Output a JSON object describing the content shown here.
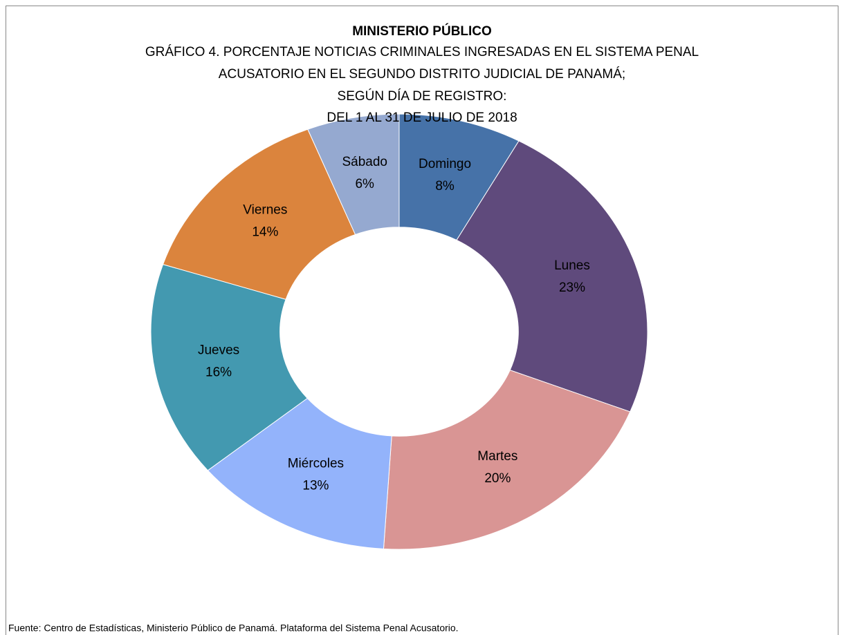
{
  "chart_data": {
    "type": "donut",
    "title": "MINISTERIO PÚBLICO",
    "subtitle": [
      "GRÁFICO 4. PORCENTAJE NOTICIAS CRIMINALES INGRESADAS EN EL SISTEMA PENAL",
      "ACUSATORIO EN EL SEGUNDO DISTRITO JUDICIAL DE PANAMÁ;",
      "SEGÚN DÍA DE REGISTRO:",
      "DEL 1 AL 31 DE JULIO DE 2018"
    ],
    "categories": [
      "Domingo",
      "Lunes",
      "Martes",
      "Miércoles",
      "Jueves",
      "Viernes",
      "Sábado"
    ],
    "values": [
      8,
      23,
      20,
      13,
      16,
      14,
      6
    ],
    "value_labels": [
      "8%",
      "23%",
      "20%",
      "13%",
      "16%",
      "14%",
      "6%"
    ],
    "colors": [
      "#4672a8",
      "#5f4a7c",
      "#d99594",
      "#93b3fb",
      "#4399b0",
      "#db843d",
      "#95a9d0"
    ],
    "source": "Fuente: Centro de Estadísticas, Ministerio Público de Panamá. Plataforma del Sistema Penal Acusatorio."
  }
}
